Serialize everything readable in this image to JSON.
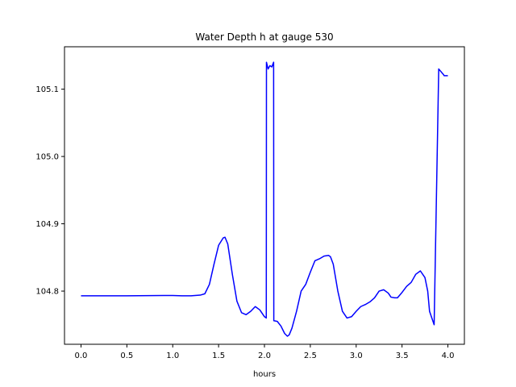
{
  "chart_data": {
    "type": "line",
    "title": "Water Depth h at gauge 530",
    "xlabel": "hours",
    "ylabel": "",
    "xlim": [
      -0.18,
      4.18
    ],
    "ylim": [
      104.721,
      105.163
    ],
    "grid": false,
    "legend": "none",
    "x_ticks": [
      "0.0",
      "0.5",
      "1.0",
      "1.5",
      "2.0",
      "2.5",
      "3.0",
      "3.5",
      "4.0"
    ],
    "x_tick_values": [
      0.0,
      0.5,
      1.0,
      1.5,
      2.0,
      2.5,
      3.0,
      3.5,
      4.0
    ],
    "y_ticks": [
      "104.8",
      "104.9",
      "105.0",
      "105.1"
    ],
    "y_tick_values": [
      104.8,
      104.9,
      105.0,
      105.1
    ],
    "series": [
      {
        "color": "#0000ff",
        "x": [
          0.0,
          0.5,
          0.9,
          1.0,
          1.1,
          1.2,
          1.3,
          1.35,
          1.4,
          1.45,
          1.5,
          1.55,
          1.57,
          1.6,
          1.65,
          1.7,
          1.75,
          1.8,
          1.85,
          1.9,
          1.95,
          2.0,
          2.02,
          2.022,
          2.04,
          2.06,
          2.08,
          2.1,
          2.102,
          2.14,
          2.18,
          2.22,
          2.25,
          2.27,
          2.3,
          2.35,
          2.4,
          2.45,
          2.5,
          2.55,
          2.6,
          2.65,
          2.7,
          2.72,
          2.75,
          2.8,
          2.85,
          2.9,
          2.95,
          3.0,
          3.05,
          3.1,
          3.15,
          3.2,
          3.25,
          3.3,
          3.35,
          3.38,
          3.42,
          3.45,
          3.5,
          3.55,
          3.6,
          3.65,
          3.7,
          3.75,
          3.78,
          3.8,
          3.85,
          3.9,
          3.95,
          3.96,
          3.962,
          3.98,
          4.0
        ],
        "y": [
          104.793,
          104.793,
          104.7935,
          104.7935,
          104.793,
          104.793,
          104.794,
          104.796,
          104.81,
          104.84,
          104.868,
          104.879,
          104.88,
          104.87,
          104.825,
          104.785,
          104.768,
          104.765,
          104.77,
          104.777,
          104.772,
          104.762,
          104.76,
          105.14,
          105.13,
          105.135,
          105.133,
          105.14,
          104.756,
          104.755,
          104.748,
          104.737,
          104.733,
          104.735,
          104.745,
          104.77,
          104.8,
          104.81,
          104.828,
          104.845,
          104.848,
          104.852,
          104.853,
          104.851,
          104.84,
          104.8,
          104.77,
          104.76,
          104.762,
          104.77,
          104.777,
          104.78,
          104.784,
          104.79,
          104.8,
          104.802,
          104.797,
          104.791,
          104.79,
          104.79,
          104.798,
          104.807,
          104.813,
          104.825,
          104.83,
          104.82,
          104.8,
          104.77,
          104.75,
          105.13,
          105.122,
          105.12,
          105.12,
          105.12,
          105.12
        ]
      }
    ]
  }
}
